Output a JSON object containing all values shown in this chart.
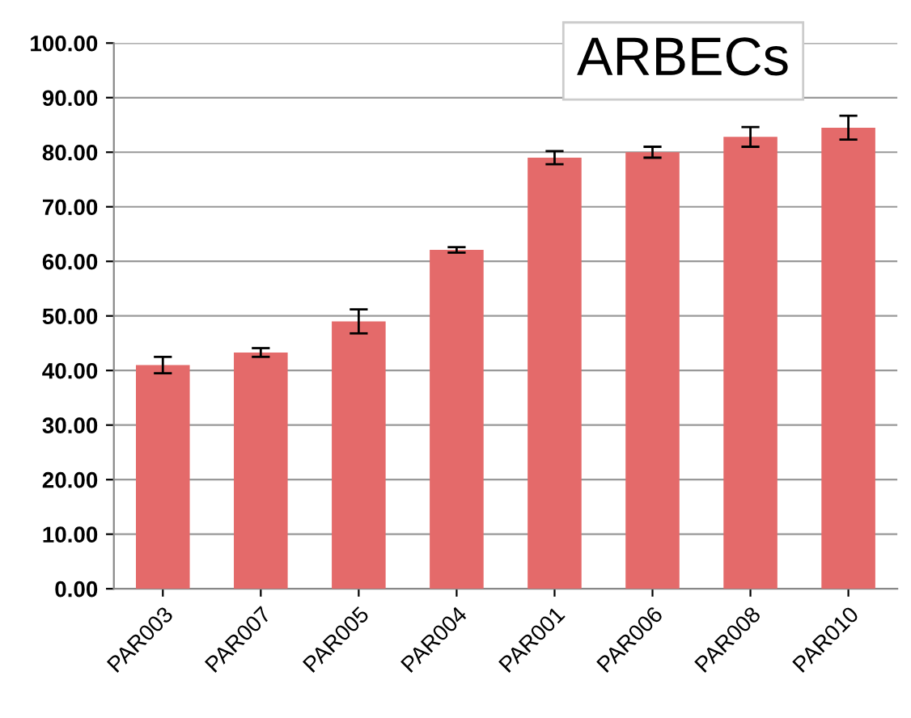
{
  "chart_data": {
    "type": "bar",
    "title": "ARBECs",
    "categories": [
      "PAR003",
      "PAR007",
      "PAR005",
      "PAR004",
      "PAR001",
      "PAR006",
      "PAR008",
      "PAR010"
    ],
    "values": [
      41.0,
      43.3,
      49.0,
      62.1,
      79.0,
      80.0,
      82.8,
      84.5
    ],
    "errors": [
      1.5,
      0.8,
      2.2,
      0.5,
      1.2,
      1.0,
      1.8,
      2.2
    ],
    "color": "#e46a6a",
    "ylim": [
      0,
      100
    ],
    "yticks": [
      {
        "value": 0,
        "label": "0.00"
      },
      {
        "value": 10,
        "label": "10.00"
      },
      {
        "value": 20,
        "label": "20.00"
      },
      {
        "value": 30,
        "label": "30.00"
      },
      {
        "value": 40,
        "label": "40.00"
      },
      {
        "value": 50,
        "label": "50.00"
      },
      {
        "value": 60,
        "label": "60.00"
      },
      {
        "value": 70,
        "label": "70.00"
      },
      {
        "value": 80,
        "label": "80.00"
      },
      {
        "value": 90,
        "label": "90.00"
      },
      {
        "value": 100,
        "label": "100.00"
      }
    ],
    "grid": "y"
  }
}
